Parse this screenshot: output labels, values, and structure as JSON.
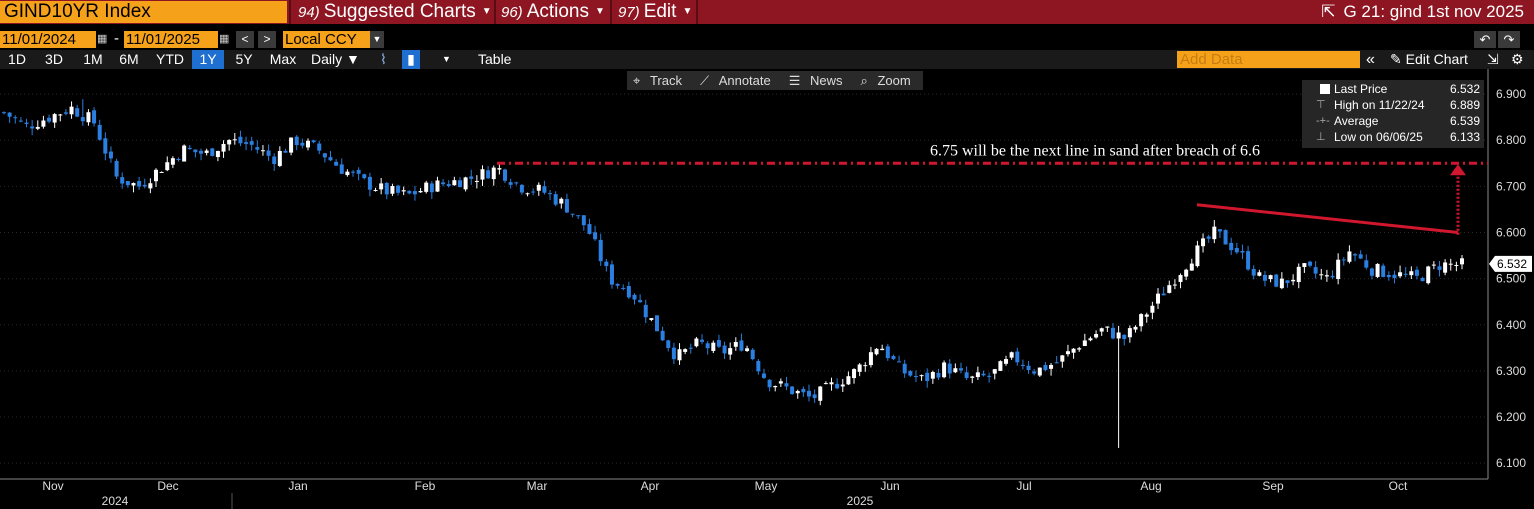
{
  "topbar": {
    "ticker": "GIND10YR Index",
    "suggested": {
      "num": "94)",
      "label": "Suggested Charts"
    },
    "actions": {
      "num": "96)",
      "label": "Actions"
    },
    "edit": {
      "num": "97)",
      "label": "Edit"
    },
    "title": "G 21: gind 1st nov 2025"
  },
  "controls": {
    "start_date": "11/01/2024",
    "end_date": "11/01/2025",
    "date_sep": "-",
    "currency": "Local CCY",
    "periods": [
      "1D",
      "3D",
      "1M",
      "6M",
      "YTD",
      "1Y",
      "5Y",
      "Max"
    ],
    "active_period": "1Y",
    "frequency": "Daily ▼",
    "table_label": "Table",
    "add_data_placeholder": "Add Data",
    "edit_chart_label": "Edit Chart"
  },
  "chart_toolbar": {
    "track": "Track",
    "annotate": "Annotate",
    "news": "News",
    "zoom": "Zoom"
  },
  "legend": {
    "last_price_label": "Last Price",
    "last_price": "6.532",
    "high_label": "High on 11/22/24",
    "high": "6.889",
    "average_label": "Average",
    "average": "6.539",
    "low_label": "Low on 06/06/25",
    "low": "6.133"
  },
  "last_tag": "6.532",
  "annotation": "6.75 will be the next line in sand after breach of 6.6",
  "colors": {
    "up": "#ffffff",
    "down": "#2b7fe0",
    "accent": "#f5a21a",
    "annotation": "#d0172d",
    "topbar": "#8e1622"
  },
  "chart_data": {
    "type": "candlestick",
    "xlabel": "",
    "ylabel": "",
    "ylim": [
      6.07,
      6.95
    ],
    "y_ticks": [
      "6.900",
      "6.800",
      "6.700",
      "6.600",
      "6.500",
      "6.400",
      "6.300",
      "6.200",
      "6.100"
    ],
    "x_months": [
      "Nov",
      "Dec",
      "Jan",
      "Feb",
      "Mar",
      "Apr",
      "May",
      "Jun",
      "Jul",
      "Aug",
      "Sep",
      "Oct"
    ],
    "x_years": [
      "2024",
      "2025"
    ],
    "weekly_close": [
      6.86,
      6.83,
      6.85,
      6.87,
      6.84,
      6.72,
      6.7,
      6.74,
      6.78,
      6.77,
      6.8,
      6.79,
      6.76,
      6.8,
      6.78,
      6.74,
      6.71,
      6.69,
      6.68,
      6.7,
      6.71,
      6.72,
      6.74,
      6.7,
      6.69,
      6.66,
      6.61,
      6.5,
      6.47,
      6.4,
      6.33,
      6.36,
      6.34,
      6.36,
      6.28,
      6.26,
      6.24,
      6.27,
      6.3,
      6.36,
      6.3,
      6.28,
      6.31,
      6.28,
      6.29,
      6.33,
      6.3,
      6.32,
      6.36,
      6.39,
      6.37,
      6.43,
      6.49,
      6.55,
      6.6,
      6.56,
      6.5,
      6.49,
      6.52,
      6.5,
      6.56,
      6.52,
      6.51,
      6.5,
      6.53,
      6.53
    ],
    "high": {
      "date": "11/22/24",
      "value": 6.889
    },
    "low": {
      "date": "06/06/25",
      "value": 6.133
    },
    "last": 6.532,
    "average": 6.539,
    "reference_lines": [
      6.75,
      6.6
    ]
  }
}
